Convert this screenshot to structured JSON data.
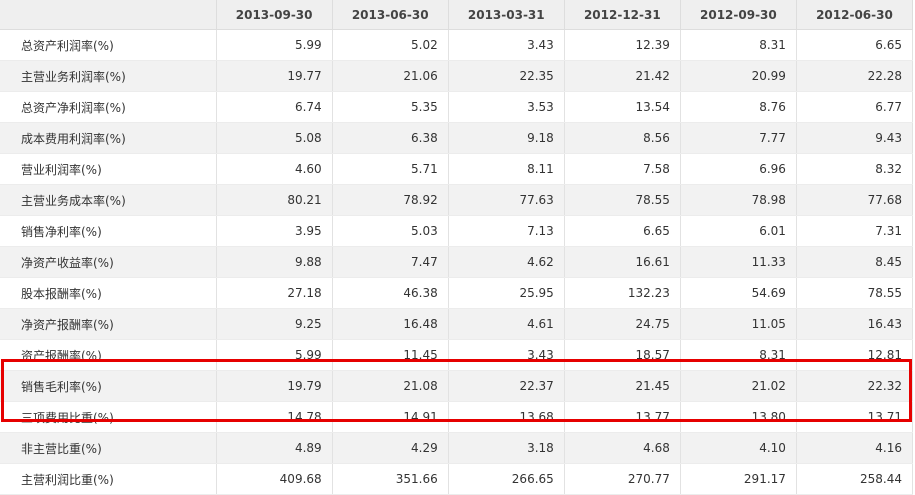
{
  "table": {
    "corner": "",
    "columns": [
      "2013-09-30",
      "2013-06-30",
      "2013-03-31",
      "2012-12-31",
      "2012-09-30",
      "2012-06-30"
    ],
    "rows": [
      {
        "label": "总资产利润率(%)",
        "values": [
          "5.99",
          "5.02",
          "3.43",
          "12.39",
          "8.31",
          "6.65"
        ]
      },
      {
        "label": "主营业务利润率(%)",
        "values": [
          "19.77",
          "21.06",
          "22.35",
          "21.42",
          "20.99",
          "22.28"
        ]
      },
      {
        "label": "总资产净利润率(%)",
        "values": [
          "6.74",
          "5.35",
          "3.53",
          "13.54",
          "8.76",
          "6.77"
        ]
      },
      {
        "label": "成本费用利润率(%)",
        "values": [
          "5.08",
          "6.38",
          "9.18",
          "8.56",
          "7.77",
          "9.43"
        ]
      },
      {
        "label": "营业利润率(%)",
        "values": [
          "4.60",
          "5.71",
          "8.11",
          "7.58",
          "6.96",
          "8.32"
        ]
      },
      {
        "label": "主营业务成本率(%)",
        "values": [
          "80.21",
          "78.92",
          "77.63",
          "78.55",
          "78.98",
          "77.68"
        ]
      },
      {
        "label": "销售净利率(%)",
        "values": [
          "3.95",
          "5.03",
          "7.13",
          "6.65",
          "6.01",
          "7.31"
        ]
      },
      {
        "label": "净资产收益率(%)",
        "values": [
          "9.88",
          "7.47",
          "4.62",
          "16.61",
          "11.33",
          "8.45"
        ]
      },
      {
        "label": "股本报酬率(%)",
        "values": [
          "27.18",
          "46.38",
          "25.95",
          "132.23",
          "54.69",
          "78.55"
        ]
      },
      {
        "label": "净资产报酬率(%)",
        "values": [
          "9.25",
          "16.48",
          "4.61",
          "24.75",
          "11.05",
          "16.43"
        ]
      },
      {
        "label": "资产报酬率(%)",
        "values": [
          "5.99",
          "11.45",
          "3.43",
          "18.57",
          "8.31",
          "12.81"
        ]
      },
      {
        "label": "销售毛利率(%)",
        "values": [
          "19.79",
          "21.08",
          "22.37",
          "21.45",
          "21.02",
          "22.32"
        ]
      },
      {
        "label": "三项费用比重(%)",
        "values": [
          "14.78",
          "14.91",
          "13.68",
          "13.77",
          "13.80",
          "13.71"
        ]
      },
      {
        "label": "非主营比重(%)",
        "values": [
          "4.89",
          "4.29",
          "3.18",
          "4.68",
          "4.10",
          "4.16"
        ]
      },
      {
        "label": "主营利润比重(%)",
        "values": [
          "409.68",
          "351.66",
          "266.65",
          "270.77",
          "291.17",
          "258.44"
        ]
      }
    ]
  },
  "highlight": {
    "rows": [
      "销售毛利率(%)",
      "三项费用比重(%)"
    ],
    "color": "#e60000"
  }
}
